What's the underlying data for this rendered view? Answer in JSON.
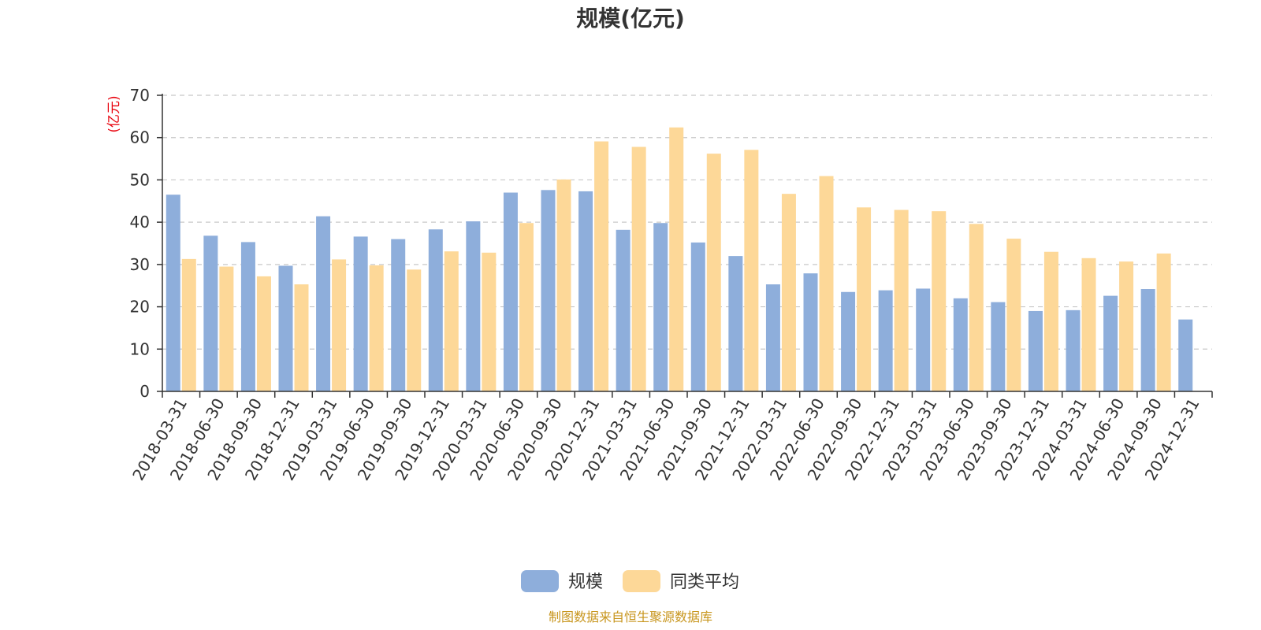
{
  "chart_data": {
    "type": "bar",
    "title": "规模(亿元)",
    "ylabel": "(亿元)",
    "xlabel": "",
    "ylim": [
      0,
      70
    ],
    "yticks": [
      0,
      10,
      20,
      30,
      40,
      50,
      60,
      70
    ],
    "grid": true,
    "legend_position": "bottom",
    "categories": [
      "2018-03-31",
      "2018-06-30",
      "2018-09-30",
      "2018-12-31",
      "2019-03-31",
      "2019-06-30",
      "2019-09-30",
      "2019-12-31",
      "2020-03-31",
      "2020-06-30",
      "2020-09-30",
      "2020-12-31",
      "2021-03-31",
      "2021-06-30",
      "2021-09-30",
      "2021-12-31",
      "2022-03-31",
      "2022-06-30",
      "2022-09-30",
      "2022-12-31",
      "2023-03-31",
      "2023-06-30",
      "2023-09-30",
      "2023-12-31",
      "2024-03-31",
      "2024-06-30",
      "2024-09-30",
      "2024-12-31"
    ],
    "series": [
      {
        "name": "规模",
        "color": "#8eaedb",
        "values": [
          46.5,
          36.8,
          35.3,
          29.7,
          41.4,
          36.6,
          36.0,
          38.3,
          40.2,
          47.0,
          47.6,
          47.3,
          38.2,
          39.8,
          35.2,
          32.0,
          25.3,
          27.9,
          23.5,
          23.9,
          24.3,
          22.0,
          21.1,
          19.0,
          19.2,
          22.6,
          24.2,
          17.0
        ]
      },
      {
        "name": "同类平均",
        "color": "#fdd898",
        "values": [
          31.3,
          29.5,
          27.2,
          25.3,
          31.2,
          29.8,
          28.8,
          33.1,
          32.8,
          39.8,
          50.1,
          59.1,
          57.8,
          62.4,
          56.2,
          57.1,
          46.7,
          50.9,
          43.5,
          42.9,
          42.6,
          39.6,
          36.1,
          33.0,
          31.5,
          30.7,
          32.6,
          null
        ]
      }
    ]
  },
  "source_note": "制图数据来自恒生聚源数据库"
}
